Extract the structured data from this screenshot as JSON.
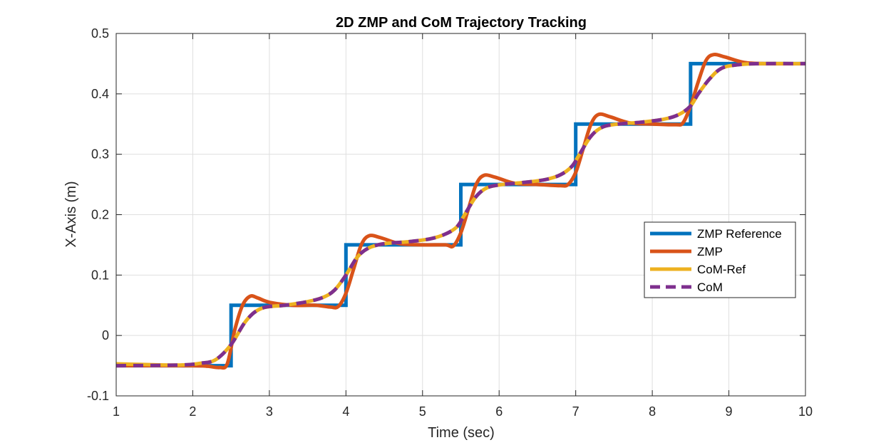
{
  "chart_data": {
    "type": "line",
    "title": "2D ZMP and CoM Trajectory Tracking",
    "xlabel": "Time (sec)",
    "ylabel": "X-Axis (m)",
    "xlim": [
      1,
      10
    ],
    "ylim": [
      -0.1,
      0.5
    ],
    "xticks": [
      1,
      2,
      3,
      4,
      5,
      6,
      7,
      8,
      9,
      10
    ],
    "yticks": [
      -0.1,
      0,
      0.1,
      0.2,
      0.3,
      0.4,
      0.5
    ],
    "xtick_labels": [
      "1",
      "2",
      "3",
      "4",
      "5",
      "6",
      "7",
      "8",
      "9",
      "10"
    ],
    "ytick_labels": [
      "-0.1",
      "0",
      "0.1",
      "0.2",
      "0.3",
      "0.4",
      "0.5"
    ],
    "grid": true,
    "legend_position": "right",
    "series": [
      {
        "name": "ZMP Reference",
        "color": "#0072BD",
        "style": "solid",
        "x": [
          1,
          2.5,
          2.5,
          4,
          4,
          5.5,
          5.5,
          7,
          7,
          8.5,
          8.5,
          10
        ],
        "y": [
          -0.05,
          -0.05,
          0.05,
          0.05,
          0.15,
          0.15,
          0.25,
          0.25,
          0.35,
          0.35,
          0.45,
          0.45
        ]
      },
      {
        "name": "ZMP",
        "color": "#D95319",
        "style": "solid",
        "x": [
          1,
          2.0,
          2.2,
          2.35,
          2.45,
          2.55,
          2.65,
          2.75,
          2.85,
          3.0,
          3.3,
          3.6,
          3.8,
          3.9,
          4.0,
          4.1,
          4.2,
          4.3,
          4.45,
          4.7,
          5.0,
          5.3,
          5.4,
          5.5,
          5.6,
          5.7,
          5.8,
          5.95,
          6.2,
          6.5,
          6.8,
          6.9,
          7.0,
          7.1,
          7.2,
          7.3,
          7.45,
          7.7,
          8.0,
          8.3,
          8.4,
          8.5,
          8.6,
          8.7,
          8.8,
          8.95,
          9.2,
          9.5,
          10
        ],
        "y": [
          -0.05,
          -0.05,
          -0.051,
          -0.053,
          -0.047,
          0.01,
          0.05,
          0.065,
          0.062,
          0.055,
          0.05,
          0.05,
          0.047,
          0.048,
          0.07,
          0.11,
          0.15,
          0.165,
          0.162,
          0.152,
          0.15,
          0.15,
          0.148,
          0.17,
          0.21,
          0.25,
          0.265,
          0.262,
          0.252,
          0.25,
          0.248,
          0.25,
          0.27,
          0.31,
          0.35,
          0.366,
          0.362,
          0.352,
          0.35,
          0.349,
          0.352,
          0.38,
          0.42,
          0.455,
          0.465,
          0.461,
          0.452,
          0.45,
          0.45
        ]
      },
      {
        "name": "CoM-Ref",
        "color": "#EDB120",
        "style": "solid",
        "x": [
          1,
          1.8,
          2.1,
          2.3,
          2.5,
          2.7,
          2.9,
          3.2,
          3.5,
          3.7,
          3.85,
          4.0,
          4.15,
          4.3,
          4.5,
          4.8,
          5.1,
          5.3,
          5.45,
          5.55,
          5.7,
          5.85,
          6.05,
          6.3,
          6.6,
          6.8,
          6.95,
          7.05,
          7.2,
          7.35,
          7.55,
          7.85,
          8.15,
          8.35,
          8.5,
          8.6,
          8.75,
          8.9,
          9.1,
          9.4,
          10
        ],
        "y": [
          -0.047,
          -0.049,
          -0.046,
          -0.04,
          -0.015,
          0.025,
          0.045,
          0.05,
          0.056,
          0.063,
          0.075,
          0.1,
          0.13,
          0.145,
          0.152,
          0.155,
          0.16,
          0.168,
          0.18,
          0.2,
          0.23,
          0.245,
          0.25,
          0.253,
          0.258,
          0.266,
          0.28,
          0.3,
          0.33,
          0.345,
          0.35,
          0.353,
          0.358,
          0.366,
          0.38,
          0.4,
          0.425,
          0.442,
          0.448,
          0.45,
          0.45
        ]
      },
      {
        "name": "CoM",
        "color": "#7E2F8E",
        "style": "dashed",
        "x": [
          1,
          1.8,
          2.1,
          2.3,
          2.5,
          2.7,
          2.9,
          3.2,
          3.5,
          3.7,
          3.85,
          4.0,
          4.15,
          4.3,
          4.5,
          4.8,
          5.1,
          5.3,
          5.45,
          5.55,
          5.7,
          5.85,
          6.05,
          6.3,
          6.6,
          6.8,
          6.95,
          7.05,
          7.2,
          7.35,
          7.55,
          7.85,
          8.15,
          8.35,
          8.5,
          8.6,
          8.75,
          8.9,
          9.1,
          9.4,
          10
        ],
        "y": [
          -0.05,
          -0.049,
          -0.046,
          -0.04,
          -0.015,
          0.025,
          0.045,
          0.05,
          0.056,
          0.063,
          0.075,
          0.1,
          0.13,
          0.145,
          0.152,
          0.155,
          0.16,
          0.168,
          0.18,
          0.2,
          0.23,
          0.245,
          0.25,
          0.253,
          0.258,
          0.266,
          0.28,
          0.3,
          0.33,
          0.345,
          0.35,
          0.353,
          0.358,
          0.366,
          0.38,
          0.4,
          0.425,
          0.442,
          0.448,
          0.45,
          0.45
        ]
      }
    ]
  }
}
